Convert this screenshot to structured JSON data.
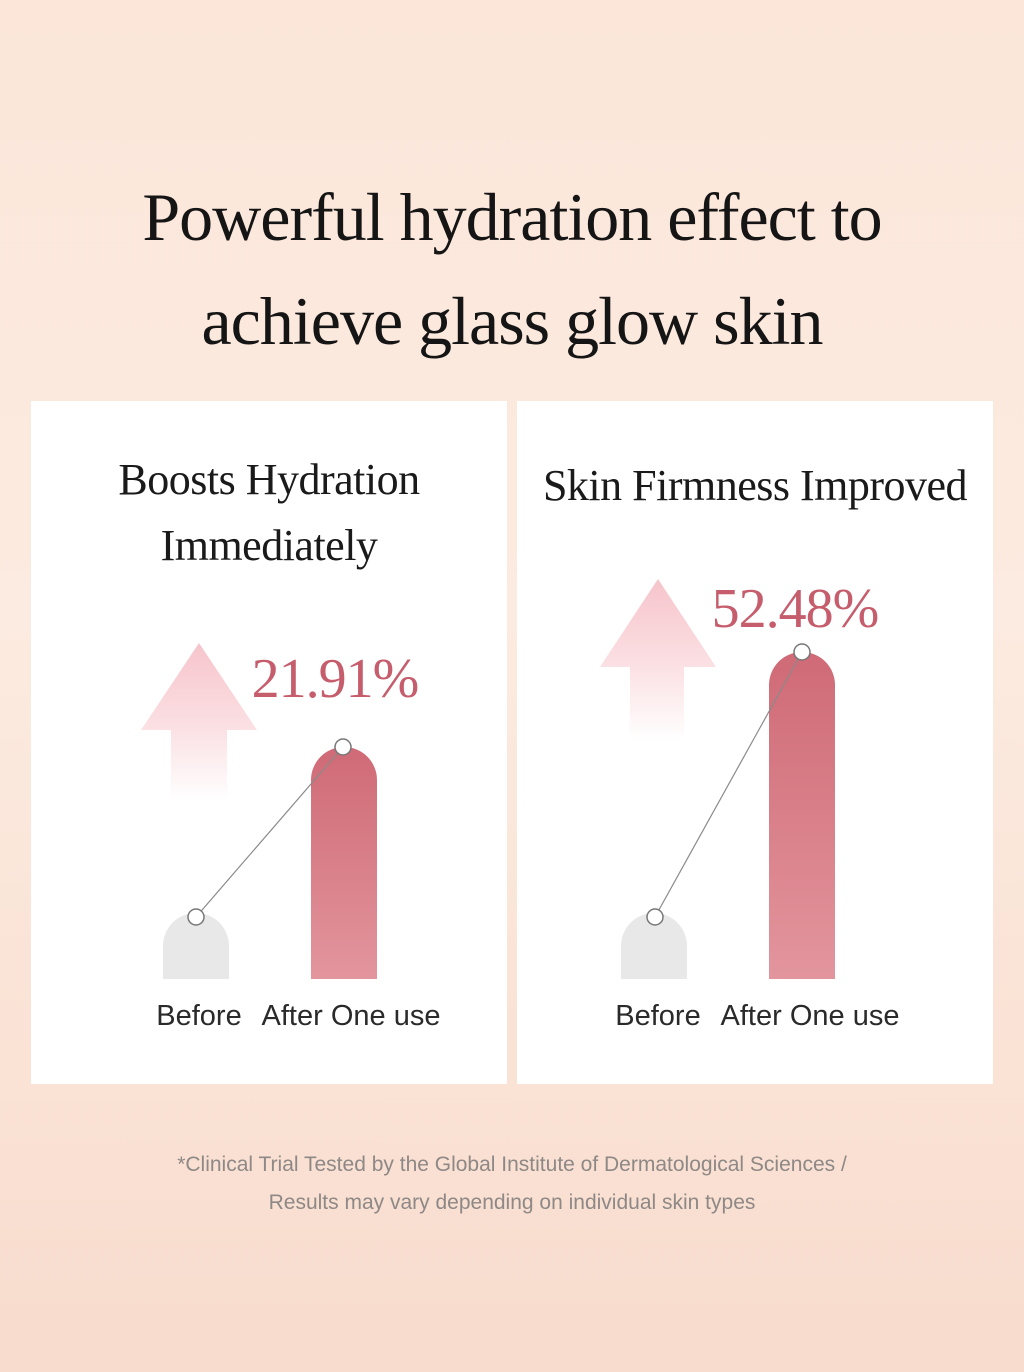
{
  "headline": {
    "line1": "Powerful hydration effect to",
    "line2": "achieve glass glow skin"
  },
  "chart_data": [
    {
      "type": "bar",
      "title_lines": [
        "Boosts Hydration",
        "Immediately"
      ],
      "categories": [
        "Before",
        "After One use"
      ],
      "annotation": "21.91%",
      "improvement_percent": 21.91
    },
    {
      "type": "bar",
      "title_lines": [
        "Skin Firmness Improved"
      ],
      "categories": [
        "Before",
        "After One use"
      ],
      "annotation": "52.48%",
      "improvement_percent": 52.48
    }
  ],
  "footnote": {
    "line1": "*Clinical Trial Tested by the Global Institute of Dermatological Sciences /",
    "line2": "Results may vary depending on individual skin types"
  },
  "colors": {
    "accent": "#c65d6c",
    "bar_top": "#cf6a76",
    "bar_bottom": "#e3959d",
    "before_bar": "#e8e8e8",
    "arrow": "#f6c9cf"
  }
}
